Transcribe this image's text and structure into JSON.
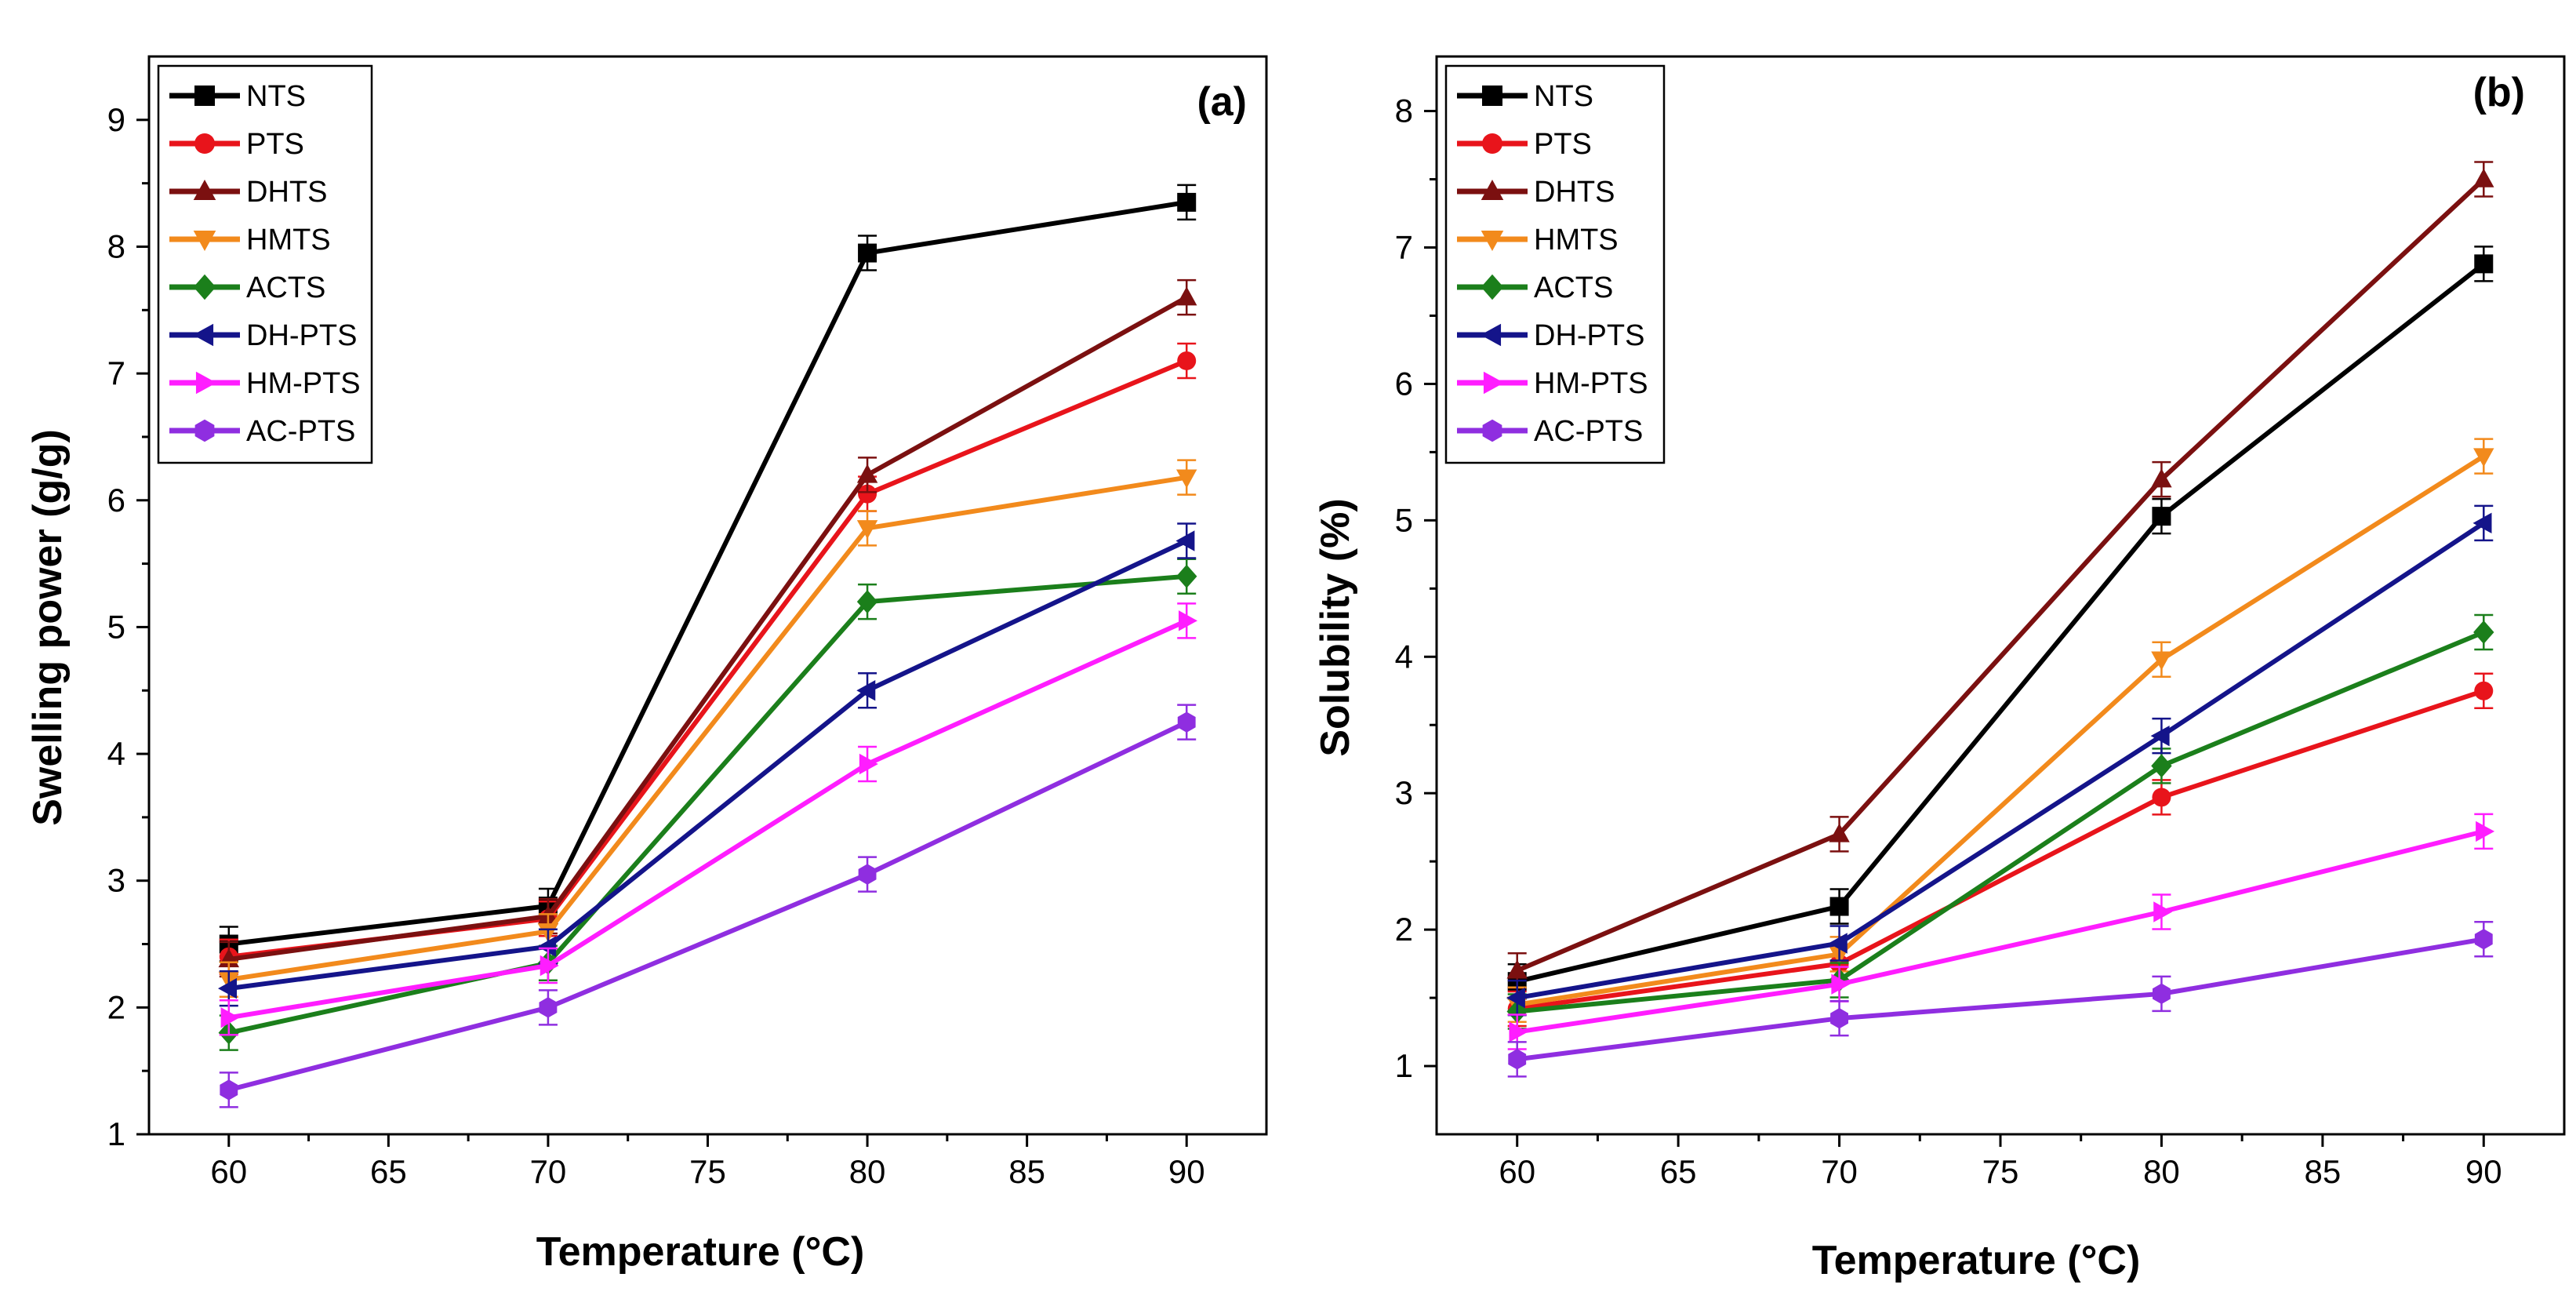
{
  "chart_data": [
    {
      "type": "line",
      "panel_label": "(a)",
      "xlabel": "Temperature (°C)",
      "ylabel": "Swelling power (g/g)",
      "xlim": [
        57.5,
        92.5
      ],
      "ylim": [
        1,
        9.5
      ],
      "xticks": [
        60,
        65,
        70,
        75,
        80,
        85,
        90
      ],
      "yticks": [
        1,
        2,
        3,
        4,
        5,
        6,
        7,
        8,
        9
      ],
      "legend_position": "top-left",
      "x": [
        60,
        70,
        80,
        90
      ],
      "series": [
        {
          "name": "NTS",
          "color": "#000000",
          "marker": "square",
          "values": [
            2.5,
            2.8,
            7.95,
            8.35
          ]
        },
        {
          "name": "PTS",
          "color": "#e8141b",
          "marker": "circle",
          "values": [
            2.4,
            2.7,
            6.05,
            7.1
          ]
        },
        {
          "name": "DHTS",
          "color": "#7b1010",
          "marker": "triangle-up",
          "values": [
            2.38,
            2.72,
            6.2,
            7.6
          ]
        },
        {
          "name": "HMTS",
          "color": "#f28a1c",
          "marker": "triangle-down",
          "values": [
            2.22,
            2.6,
            5.78,
            6.18
          ]
        },
        {
          "name": "ACTS",
          "color": "#1b7f1b",
          "marker": "diamond",
          "values": [
            1.8,
            2.35,
            5.2,
            5.4
          ]
        },
        {
          "name": "DH-PTS",
          "color": "#14148a",
          "marker": "triangle-left",
          "values": [
            2.15,
            2.48,
            4.5,
            5.68
          ]
        },
        {
          "name": "HM-PTS",
          "color": "#ff1dff",
          "marker": "triangle-right",
          "values": [
            1.92,
            2.33,
            3.92,
            5.05
          ]
        },
        {
          "name": "AC-PTS",
          "color": "#8f2ee0",
          "marker": "hexagon",
          "values": [
            1.35,
            2.0,
            3.05,
            4.25
          ]
        }
      ]
    },
    {
      "type": "line",
      "panel_label": "(b)",
      "xlabel": "Temperature (°C)",
      "ylabel": "Solubility (%)",
      "xlim": [
        57.5,
        92.5
      ],
      "ylim": [
        0.5,
        8.4
      ],
      "xticks": [
        60,
        65,
        70,
        75,
        80,
        85,
        90
      ],
      "yticks": [
        1,
        2,
        3,
        4,
        5,
        6,
        7,
        8
      ],
      "legend_position": "top-left",
      "x": [
        60,
        70,
        80,
        90
      ],
      "series": [
        {
          "name": "NTS",
          "color": "#000000",
          "marker": "square",
          "values": [
            1.62,
            2.17,
            5.03,
            6.88
          ]
        },
        {
          "name": "PTS",
          "color": "#e8141b",
          "marker": "circle",
          "values": [
            1.42,
            1.75,
            2.97,
            3.75
          ]
        },
        {
          "name": "DHTS",
          "color": "#7b1010",
          "marker": "triangle-up",
          "values": [
            1.7,
            2.7,
            5.3,
            7.5
          ]
        },
        {
          "name": "HMTS",
          "color": "#f28a1c",
          "marker": "triangle-down",
          "values": [
            1.45,
            1.82,
            3.98,
            5.47
          ]
        },
        {
          "name": "ACTS",
          "color": "#1b7f1b",
          "marker": "diamond",
          "values": [
            1.4,
            1.63,
            3.2,
            4.18
          ]
        },
        {
          "name": "DH-PTS",
          "color": "#14148a",
          "marker": "triangle-left",
          "values": [
            1.5,
            1.9,
            3.42,
            4.98
          ]
        },
        {
          "name": "HM-PTS",
          "color": "#ff1dff",
          "marker": "triangle-right",
          "values": [
            1.25,
            1.6,
            2.13,
            2.72
          ]
        },
        {
          "name": "AC-PTS",
          "color": "#8f2ee0",
          "marker": "hexagon",
          "values": [
            1.05,
            1.35,
            1.53,
            1.93
          ]
        }
      ]
    }
  ]
}
